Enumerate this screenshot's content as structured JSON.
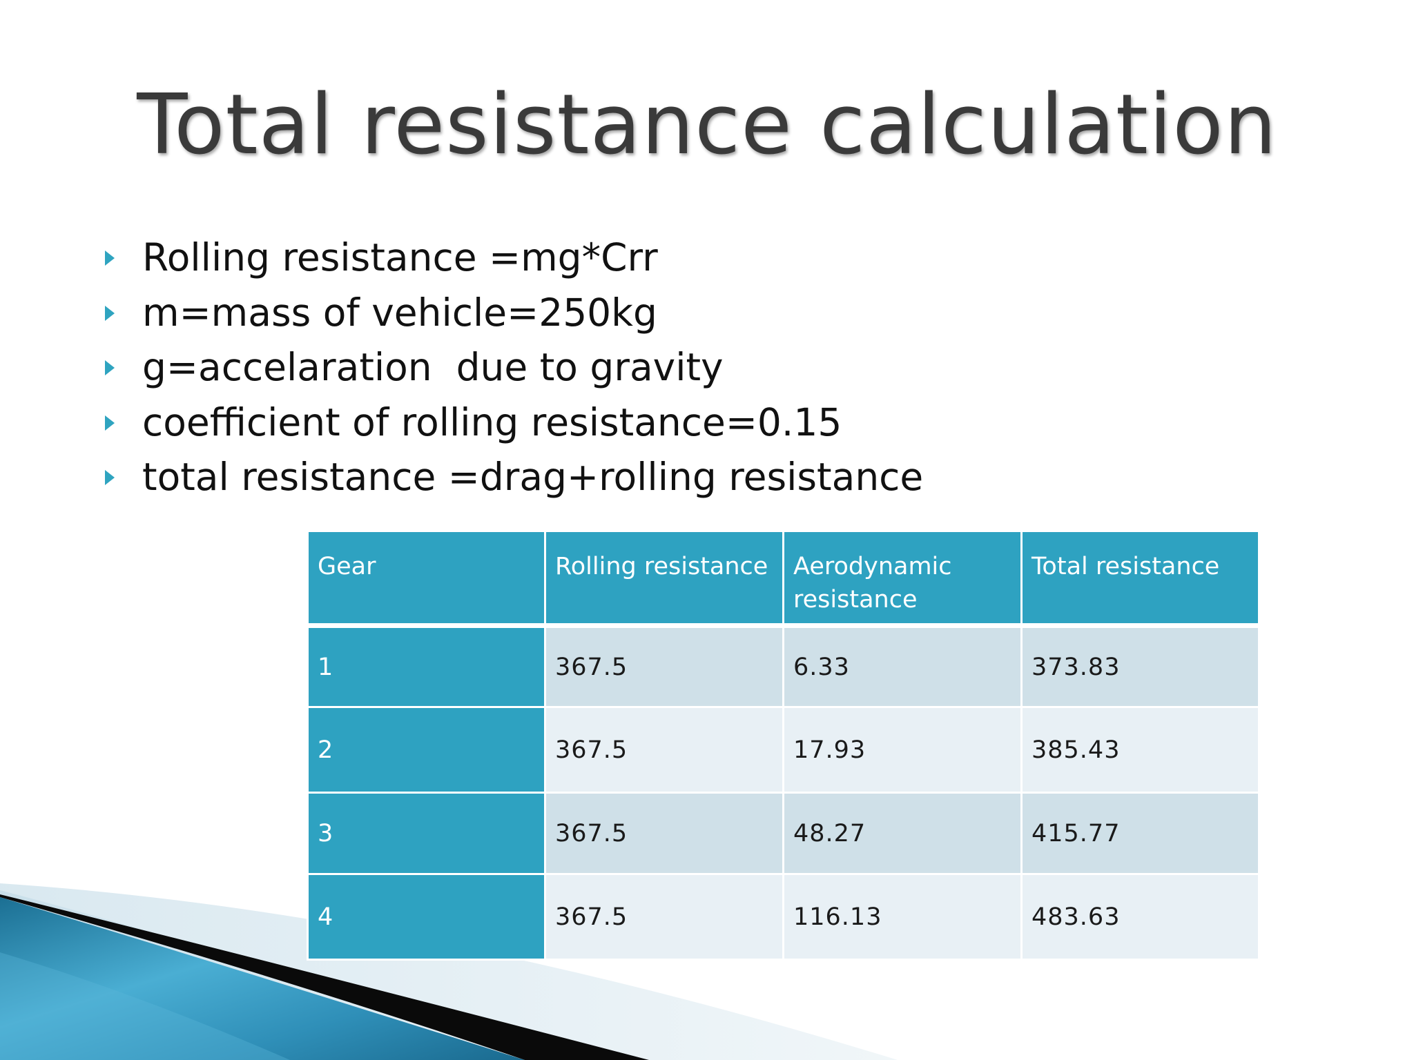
{
  "title": "Total resistance calculation",
  "bullets": [
    "Rolling resistance =mg*Crr",
    "m=mass of vehicle=250kg",
    "g=accelaration  due to gravity",
    "coefficient of rolling resistance=0.15",
    "total resistance =drag+rolling resistance"
  ],
  "table": {
    "headers": [
      "Gear",
      "Rolling resistance",
      "Aerodynamic resistance",
      "Total resistance"
    ],
    "rows": [
      [
        "1",
        "367.5",
        "6.33",
        "373.83"
      ],
      [
        "2",
        "367.5",
        "17.93",
        "385.43"
      ],
      [
        "3",
        "367.5",
        "48.27",
        "415.77"
      ],
      [
        "4",
        "367.5",
        "116.13",
        "483.63"
      ]
    ]
  },
  "colors": {
    "accent": "#2ea2c1",
    "row_dark": "#cfe0e8",
    "row_light": "#e8f0f5",
    "title": "#3a3a3a"
  }
}
